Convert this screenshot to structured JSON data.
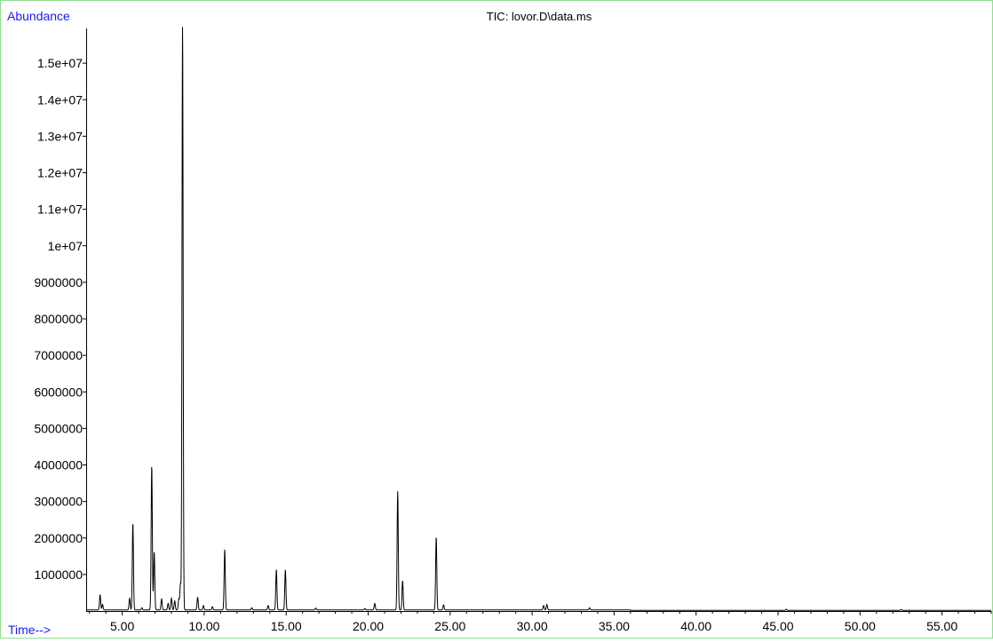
{
  "chart_data": {
    "type": "line",
    "title": "TIC: lovor.D\\data.ms",
    "ylabel": "Abundance",
    "xlabel": "Time-->",
    "xlim": [
      2.8,
      58.0
    ],
    "ylim": [
      0,
      16000000
    ],
    "x_ticks": [
      5,
      10,
      15,
      20,
      25,
      30,
      35,
      40,
      45,
      50,
      55
    ],
    "x_tick_labels": [
      "5.00",
      "10.00",
      "15.00",
      "20.00",
      "25.00",
      "30.00",
      "35.00",
      "40.00",
      "45.00",
      "50.00",
      "55.00"
    ],
    "y_ticks": [
      1000000,
      2000000,
      3000000,
      4000000,
      5000000,
      6000000,
      7000000,
      8000000,
      9000000,
      10000000,
      11000000,
      12000000,
      13000000,
      14000000,
      15000000
    ],
    "y_tick_labels": [
      "1000000",
      "2000000",
      "3000000",
      "4000000",
      "5000000",
      "6000000",
      "7000000",
      "8000000",
      "9000000",
      "1e+07",
      "1.1e+07",
      "1.2e+07",
      "1.3e+07",
      "1.4e+07",
      "1.5e+07"
    ],
    "baseline": 30000,
    "peaks": [
      {
        "rt": 3.65,
        "height": 420000
      },
      {
        "rt": 3.8,
        "height": 150000
      },
      {
        "rt": 5.45,
        "height": 320000
      },
      {
        "rt": 5.65,
        "height": 2380000
      },
      {
        "rt": 6.2,
        "height": 60000
      },
      {
        "rt": 6.8,
        "height": 3950000
      },
      {
        "rt": 6.95,
        "height": 1600000
      },
      {
        "rt": 7.4,
        "height": 300000
      },
      {
        "rt": 7.8,
        "height": 180000
      },
      {
        "rt": 8.0,
        "height": 320000
      },
      {
        "rt": 8.2,
        "height": 250000
      },
      {
        "rt": 8.45,
        "height": 300000
      },
      {
        "rt": 8.55,
        "height": 700000
      },
      {
        "rt": 8.68,
        "height": 16000000
      },
      {
        "rt": 9.6,
        "height": 350000
      },
      {
        "rt": 9.95,
        "height": 120000
      },
      {
        "rt": 10.5,
        "height": 90000
      },
      {
        "rt": 11.25,
        "height": 1650000
      },
      {
        "rt": 12.9,
        "height": 60000
      },
      {
        "rt": 13.9,
        "height": 120000
      },
      {
        "rt": 14.4,
        "height": 1100000
      },
      {
        "rt": 14.95,
        "height": 1100000
      },
      {
        "rt": 16.8,
        "height": 50000
      },
      {
        "rt": 19.8,
        "height": 40000
      },
      {
        "rt": 20.4,
        "height": 180000
      },
      {
        "rt": 21.8,
        "height": 3250000
      },
      {
        "rt": 22.1,
        "height": 800000
      },
      {
        "rt": 24.15,
        "height": 2000000
      },
      {
        "rt": 24.6,
        "height": 140000
      },
      {
        "rt": 30.7,
        "height": 120000
      },
      {
        "rt": 30.9,
        "height": 150000
      },
      {
        "rt": 33.5,
        "height": 60000
      },
      {
        "rt": 45.5,
        "height": 30000
      },
      {
        "rt": 52.5,
        "height": 25000
      }
    ]
  }
}
